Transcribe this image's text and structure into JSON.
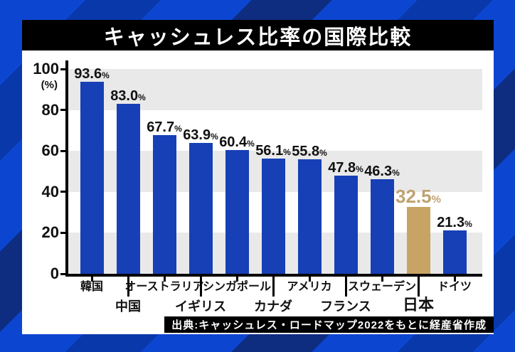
{
  "header": {
    "title": "キャッシュレス比率の国際比較"
  },
  "footer": {
    "source": "出典:キャッシュレス・ロードマップ2022をもとに経産省作成"
  },
  "chart_data": {
    "type": "bar",
    "title": "キャッシュレス比率の国際比較",
    "unit_label": "(%)",
    "ylim": [
      0,
      100
    ],
    "yticks": [
      100,
      80,
      60,
      40,
      20,
      0
    ],
    "band_interval": 20,
    "grid": "alternating-gray-bands",
    "legend_position": "none",
    "categories": [
      "韓国",
      "中国",
      "オーストラリア",
      "イギリス",
      "シンガポール",
      "カナダ",
      "アメリカ",
      "フランス",
      "スウェーデン",
      "日本",
      "ドイツ"
    ],
    "values": [
      93.6,
      83.0,
      67.7,
      63.9,
      60.4,
      56.1,
      55.8,
      47.8,
      46.3,
      32.5,
      21.3
    ],
    "value_labels": [
      "93.6",
      "83.0",
      "67.7",
      "63.9",
      "60.4",
      "56.1",
      "55.8",
      "47.8",
      "46.3",
      "32.5",
      "21.3"
    ],
    "value_suffix": "%",
    "highlight_index": 9,
    "colors": {
      "bar": "#1740b6",
      "highlight_bar": "#c8a464",
      "highlight_label": "#bfa271",
      "band": "#e9e9e9",
      "axis": "#000000",
      "label": "#111111",
      "title_bg": "#000000",
      "title_text": "#ffffff"
    }
  }
}
